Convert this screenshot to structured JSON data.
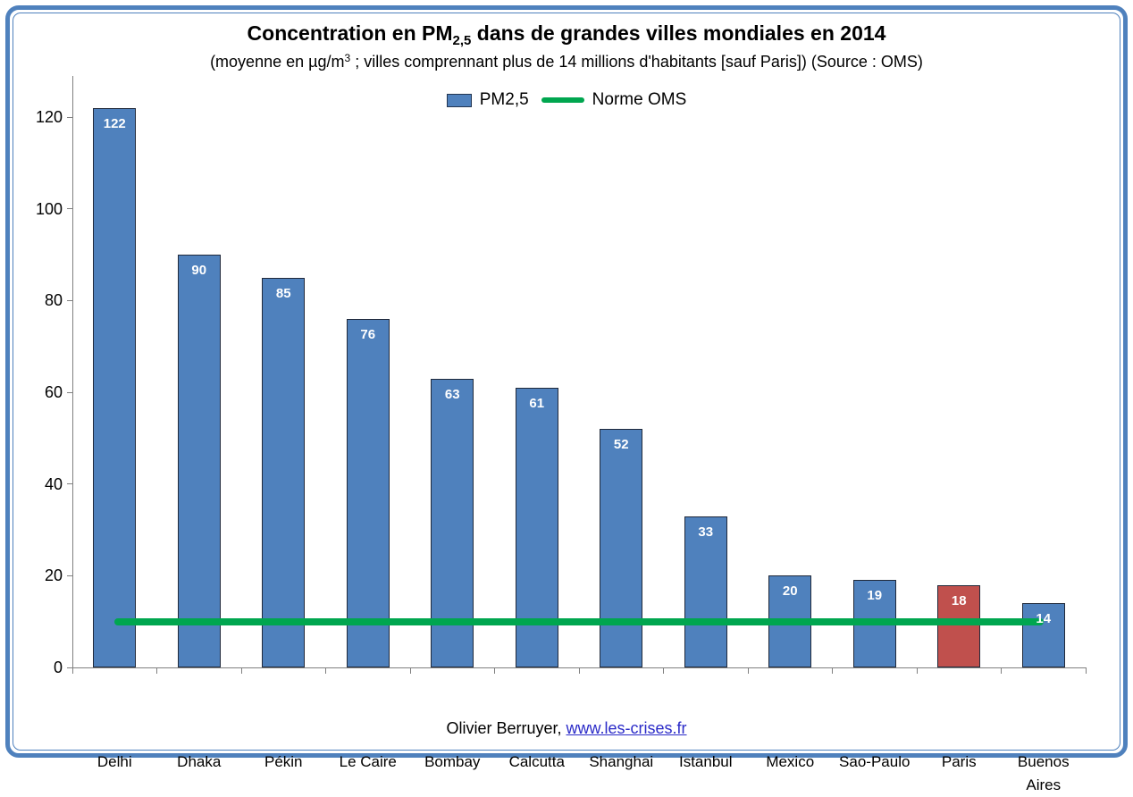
{
  "frame": {
    "border_color": "#4f81bd"
  },
  "header": {
    "title_prefix": "Concentration en PM",
    "title_sub": "2,5",
    "title_suffix": " dans de grandes villes mondiales en 2014",
    "subtitle_prefix": "(moyenne en µg/m",
    "subtitle_sup": "3",
    "subtitle_suffix": " ; villes comprennant plus de 14 millions d'habitants [sauf Paris]) (Source : OMS)"
  },
  "legend": {
    "series1_label": "PM2,5",
    "series2_label": "Norme OMS"
  },
  "footer": {
    "author": "Olivier Berruyer,",
    "link": "www.les-crises.fr",
    "link_color": "#2b2bc8"
  },
  "chart_data": {
    "type": "bar",
    "title": "Concentration en PM2,5 dans de grandes villes mondiales en 2014",
    "subtitle": "(moyenne en µg/m3 ; villes comprennant plus de 14 millions d'habitants [sauf Paris]) (Source : OMS)",
    "categories": [
      "Delhi",
      "Dhaka",
      "Pékin",
      "Le Caire",
      "Bombay",
      "Calcutta",
      "Shanghai",
      "Istanbul",
      "Mexico",
      "Sao-Paulo",
      "Paris",
      "Buenos Aires"
    ],
    "values": [
      122,
      90,
      85,
      76,
      63,
      61,
      52,
      33,
      20,
      19,
      18,
      14
    ],
    "series_label": "PM2,5",
    "bar_color": "#4f81bd",
    "highlight_index": 10,
    "highlight_color": "#c0504d",
    "norm_line": {
      "label": "Norme OMS",
      "value": 10,
      "color": "#00a64f"
    },
    "xlabel": "",
    "ylabel": "",
    "ylim": [
      0,
      129
    ],
    "yticks": [
      0,
      20,
      40,
      60,
      80,
      100,
      120
    ],
    "grid": false,
    "legend_position": "top-center"
  }
}
